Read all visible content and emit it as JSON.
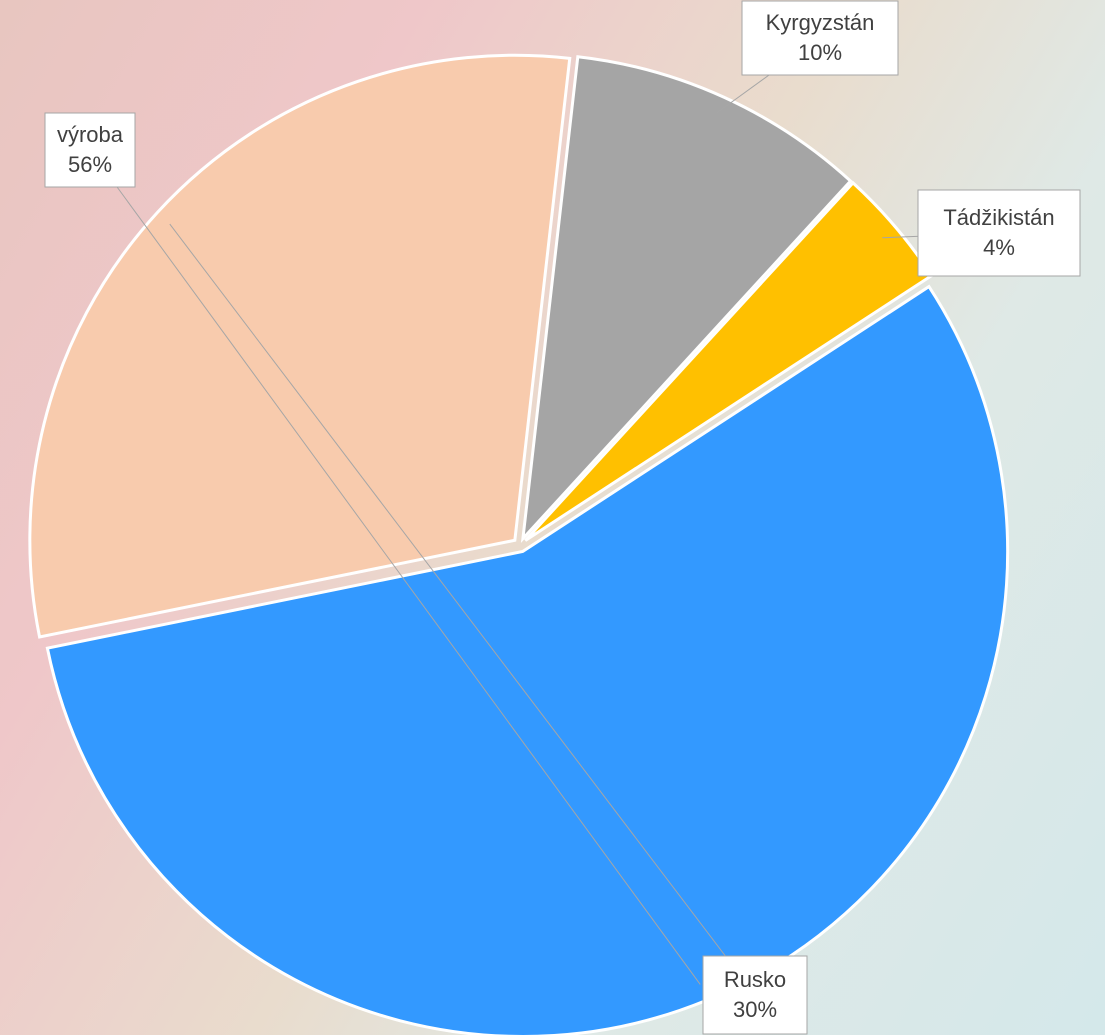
{
  "chart_data": {
    "type": "pie",
    "categories": [
      "Kyrgyzstán",
      "Tádžikistán",
      "výroba",
      "Rusko"
    ],
    "values": [
      10,
      4,
      56,
      30
    ],
    "value_labels": [
      "10%",
      "4%",
      "56%",
      "30%"
    ],
    "colors": [
      "#a5a5a5",
      "#ffc000",
      "#3399ff",
      "#f8cbad"
    ]
  }
}
